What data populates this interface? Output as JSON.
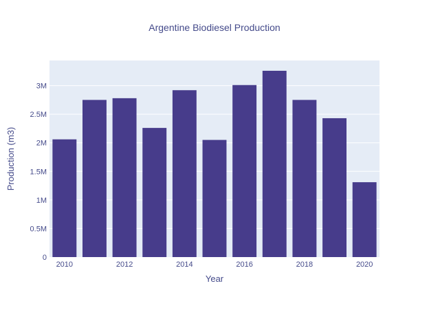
{
  "chart_data": {
    "type": "bar",
    "title": "Argentine Biodiesel Production",
    "xlabel": "Year",
    "ylabel": "Production (m3)",
    "x": [
      2010,
      2011,
      2012,
      2013,
      2014,
      2015,
      2016,
      2017,
      2018,
      2019,
      2020
    ],
    "values": [
      2060000,
      2750000,
      2780000,
      2260000,
      2920000,
      2050000,
      3010000,
      3260000,
      2750000,
      2430000,
      1310000
    ],
    "x_tick_labels": [
      "2010",
      "2012",
      "2014",
      "2016",
      "2018",
      "2020"
    ],
    "x_tick_values": [
      2010,
      2012,
      2014,
      2016,
      2018,
      2020
    ],
    "y_tick_labels": [
      "0",
      "0.5M",
      "1M",
      "1.5M",
      "2M",
      "2.5M",
      "3M"
    ],
    "y_tick_values": [
      0,
      500000,
      1000000,
      1500000,
      2000000,
      2500000,
      3000000
    ],
    "xlim": [
      2009.5,
      2020.5
    ],
    "ylim": [
      0,
      3440000
    ],
    "grid": true,
    "colors": {
      "bar": "#473c8b",
      "plot_background": "#e5ecf6",
      "grid": "#ffffff",
      "text": "#444a8a"
    }
  }
}
